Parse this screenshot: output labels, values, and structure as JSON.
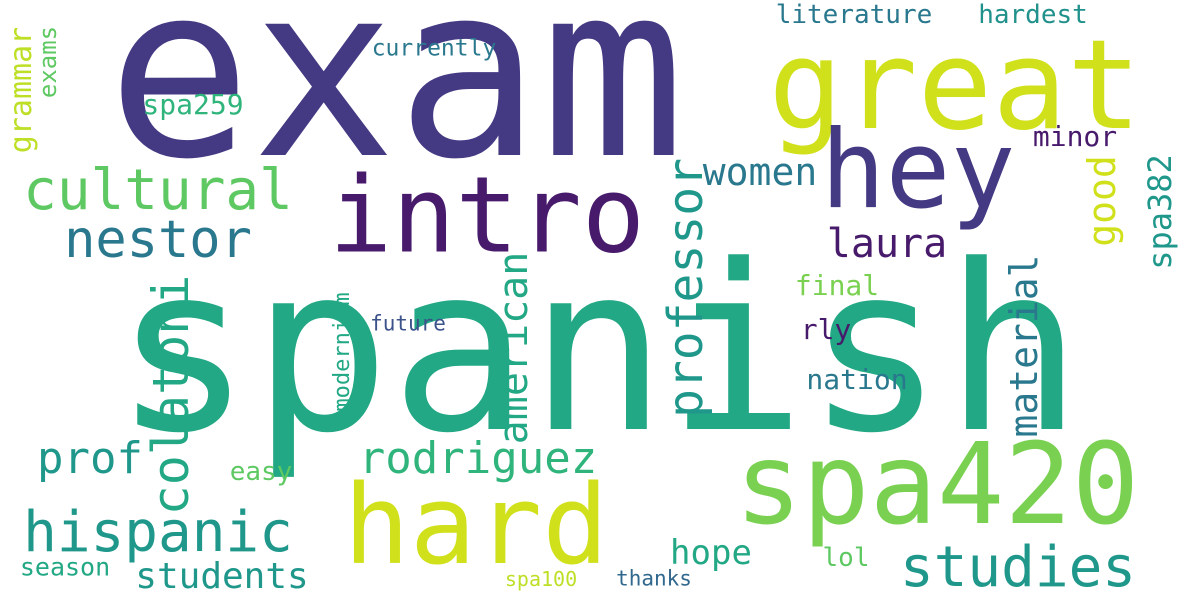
{
  "words": [
    {
      "key": "spanish",
      "text": "spanish",
      "color": "#22a884",
      "rotated": false
    },
    {
      "key": "exam",
      "text": "exam",
      "color": "#443983",
      "rotated": false
    },
    {
      "key": "great",
      "text": "great",
      "color": "#d0e11c",
      "rotated": false
    },
    {
      "key": "hey",
      "text": "hey",
      "color": "#443983",
      "rotated": false
    },
    {
      "key": "intro",
      "text": "intro",
      "color": "#481a6c",
      "rotated": false
    },
    {
      "key": "spa420",
      "text": "spa420",
      "color": "#7ad151",
      "rotated": false
    },
    {
      "key": "hard",
      "text": "hard",
      "color": "#d0e11c",
      "rotated": false
    },
    {
      "key": "cultural",
      "text": "cultural",
      "color": "#5ec962",
      "rotated": false
    },
    {
      "key": "nestor",
      "text": "nestor",
      "color": "#2a788e",
      "rotated": false
    },
    {
      "key": "hispanic",
      "text": "hispanic",
      "color": "#1f988b",
      "rotated": false
    },
    {
      "key": "studies",
      "text": "studies",
      "color": "#1f988b",
      "rotated": false
    },
    {
      "key": "colatoni",
      "text": "colatoni",
      "color": "#22a884",
      "rotated": true
    },
    {
      "key": "professor",
      "text": "professor",
      "color": "#1f988b",
      "rotated": true
    },
    {
      "key": "rodriguez",
      "text": "rodriguez",
      "color": "#2fb47c",
      "rotated": false
    },
    {
      "key": "prof",
      "text": "prof",
      "color": "#1f988b",
      "rotated": false
    },
    {
      "key": "laura",
      "text": "laura",
      "color": "#481a6c",
      "rotated": false
    },
    {
      "key": "american",
      "text": "american",
      "color": "#22a884",
      "rotated": true
    },
    {
      "key": "material",
      "text": "material",
      "color": "#2a788e",
      "rotated": true
    },
    {
      "key": "women",
      "text": "women",
      "color": "#2a788e",
      "rotated": false
    },
    {
      "key": "good",
      "text": "good",
      "color": "#d0e11c",
      "rotated": true
    },
    {
      "key": "spa382",
      "text": "spa382",
      "color": "#1f988b",
      "rotated": true
    },
    {
      "key": "students",
      "text": "students",
      "color": "#1f988b",
      "rotated": false
    },
    {
      "key": "hope",
      "text": "hope",
      "color": "#22a884",
      "rotated": false
    },
    {
      "key": "grammar",
      "text": "grammar",
      "color": "#bddf26",
      "rotated": true
    },
    {
      "key": "exams",
      "text": "exams",
      "color": "#5ec962",
      "rotated": true
    },
    {
      "key": "spa259",
      "text": "spa259",
      "color": "#2fb47c",
      "rotated": false
    },
    {
      "key": "literature",
      "text": "literature",
      "color": "#2a788e",
      "rotated": false
    },
    {
      "key": "hardest",
      "text": "hardest",
      "color": "#21918c",
      "rotated": false
    },
    {
      "key": "currently",
      "text": "currently",
      "color": "#2a788e",
      "rotated": false
    },
    {
      "key": "minor",
      "text": "minor",
      "color": "#481a6c",
      "rotated": false
    },
    {
      "key": "final",
      "text": "final",
      "color": "#7ad151",
      "rotated": false
    },
    {
      "key": "rly",
      "text": "rly",
      "color": "#481a6c",
      "rotated": false
    },
    {
      "key": "nation",
      "text": "nation",
      "color": "#2a788e",
      "rotated": false
    },
    {
      "key": "modernism",
      "text": "modernism",
      "color": "#22a884",
      "rotated": true
    },
    {
      "key": "future",
      "text": "future",
      "color": "#3b528b",
      "rotated": false
    },
    {
      "key": "easy",
      "text": "easy",
      "color": "#5ec962",
      "rotated": false
    },
    {
      "key": "season",
      "text": "season",
      "color": "#22a884",
      "rotated": false
    },
    {
      "key": "lol",
      "text": "lol",
      "color": "#5ec962",
      "rotated": false
    },
    {
      "key": "spa100",
      "text": "spa100",
      "color": "#bddf26",
      "rotated": false
    },
    {
      "key": "thanks",
      "text": "thanks",
      "color": "#31688e",
      "rotated": false
    }
  ]
}
